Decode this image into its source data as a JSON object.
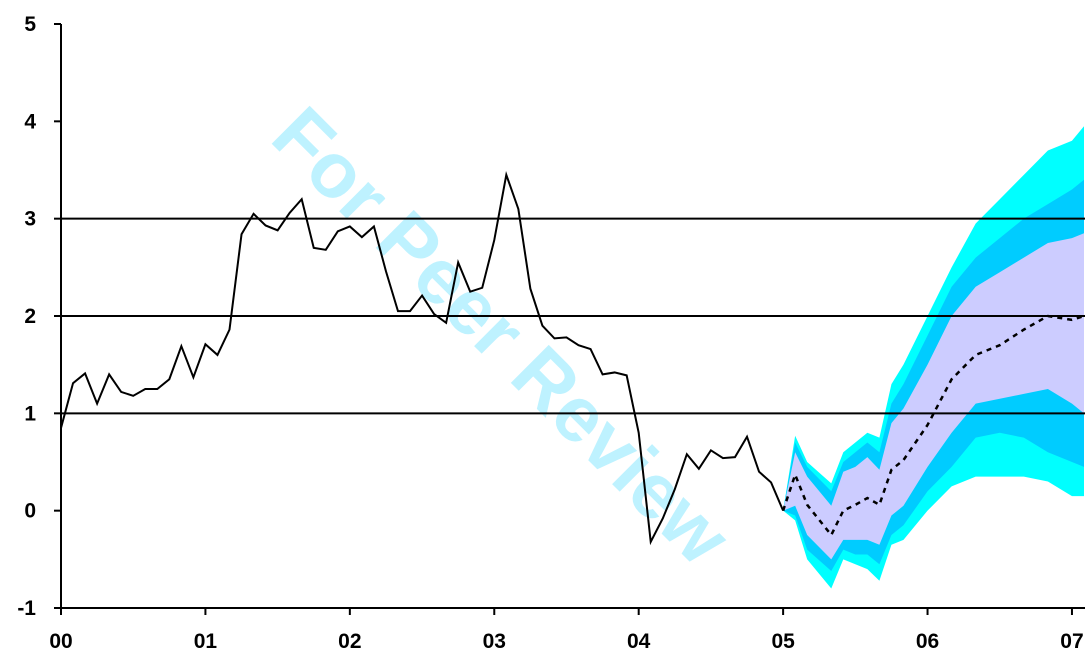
{
  "chart_data": {
    "type": "fan",
    "watermark": "For Peer Review",
    "xlim": [
      0,
      85
    ],
    "xticks": [
      {
        "value": 0,
        "label": "00"
      },
      {
        "value": 12,
        "label": "01"
      },
      {
        "value": 24,
        "label": "02"
      },
      {
        "value": 36,
        "label": "03"
      },
      {
        "value": 48,
        "label": "04"
      },
      {
        "value": 60,
        "label": "05"
      },
      {
        "value": 72,
        "label": "06"
      },
      {
        "value": 84,
        "label": "07"
      }
    ],
    "ylim": [
      -1,
      5
    ],
    "yticks": [
      -1,
      0,
      1,
      2,
      3,
      4,
      5
    ],
    "gridlines": [
      1,
      2,
      3
    ],
    "x": [
      0,
      1,
      2,
      3,
      4,
      5,
      6,
      7,
      8,
      9,
      10,
      11,
      12,
      13,
      14,
      15,
      16,
      17,
      18,
      19,
      20,
      21,
      22,
      23,
      24,
      25,
      26,
      27,
      28,
      29,
      30,
      31,
      32,
      33,
      34,
      35,
      36,
      37,
      38,
      39,
      40,
      41,
      42,
      43,
      44,
      45,
      46,
      47,
      48,
      49,
      50,
      51,
      52,
      53,
      54,
      55,
      56,
      57,
      58,
      59,
      60
    ],
    "history": {
      "color": "#000000",
      "values": [
        0.85,
        1.31,
        1.41,
        1.1,
        1.4,
        1.22,
        1.18,
        1.25,
        1.25,
        1.35,
        1.69,
        1.37,
        1.71,
        1.6,
        1.86,
        2.84,
        3.05,
        2.93,
        2.88,
        3.06,
        3.2,
        2.7,
        2.68,
        2.87,
        2.92,
        2.81,
        2.92,
        2.46,
        2.05,
        2.05,
        2.21,
        2.02,
        1.93,
        2.55,
        2.25,
        2.29,
        2.78,
        3.45,
        3.1,
        2.28,
        1.9,
        1.77,
        1.78,
        1.7,
        1.66,
        1.4,
        1.42,
        1.39,
        0.8,
        -0.32,
        -0.08,
        0.22,
        0.58,
        0.43,
        0.62,
        0.54,
        0.55,
        0.76,
        0.4,
        0.29,
        0.0
      ]
    },
    "forecast_x": [
      60,
      61,
      62,
      64,
      65,
      66,
      67,
      68,
      69,
      70,
      72,
      74,
      76,
      78,
      80,
      82,
      84,
      85
    ],
    "forecast": {
      "color": "#000000",
      "values": [
        0.0,
        0.37,
        0.06,
        -0.25,
        0.0,
        0.06,
        0.13,
        0.06,
        0.42,
        0.52,
        0.88,
        1.35,
        1.6,
        1.7,
        1.86,
        2.0,
        1.96,
        2.0
      ]
    },
    "fan": [
      {
        "color": "#00ffff",
        "lower": [
          0,
          -0.1,
          -0.5,
          -0.8,
          -0.5,
          -0.55,
          -0.6,
          -0.72,
          -0.35,
          -0.3,
          0.0,
          0.25,
          0.35,
          0.35,
          0.35,
          0.3,
          0.15,
          0.15
        ],
        "upper": [
          0,
          0.77,
          0.5,
          0.28,
          0.6,
          0.7,
          0.8,
          0.75,
          1.3,
          1.5,
          2.0,
          2.5,
          2.95,
          3.2,
          3.45,
          3.7,
          3.8,
          3.95
        ]
      },
      {
        "color": "#00ccff",
        "lower": [
          0,
          -0.05,
          -0.4,
          -0.62,
          -0.4,
          -0.45,
          -0.45,
          -0.55,
          -0.25,
          -0.15,
          0.2,
          0.45,
          0.75,
          0.8,
          0.75,
          0.6,
          0.5,
          0.45
        ],
        "upper": [
          0,
          0.7,
          0.45,
          0.2,
          0.5,
          0.6,
          0.7,
          0.6,
          1.1,
          1.3,
          1.8,
          2.3,
          2.6,
          2.8,
          3.0,
          3.15,
          3.3,
          3.4
        ]
      },
      {
        "color": "#ccccff",
        "lower": [
          0,
          0.05,
          -0.25,
          -0.5,
          -0.3,
          -0.3,
          -0.3,
          -0.35,
          -0.05,
          0.05,
          0.45,
          0.8,
          1.1,
          1.15,
          1.2,
          1.25,
          1.1,
          1.0
        ],
        "upper": [
          0,
          0.6,
          0.35,
          0.05,
          0.4,
          0.45,
          0.55,
          0.42,
          0.9,
          1.05,
          1.5,
          2.0,
          2.3,
          2.45,
          2.6,
          2.75,
          2.8,
          2.85
        ]
      }
    ]
  }
}
